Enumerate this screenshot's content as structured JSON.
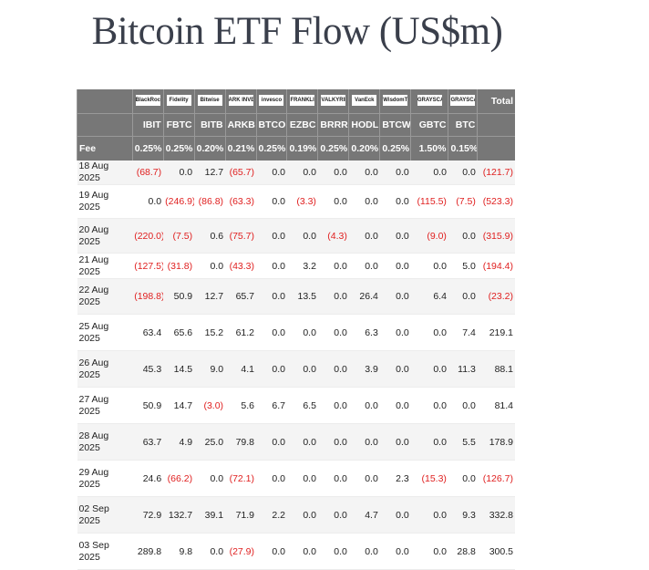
{
  "title": "Bitcoin ETF Flow (US$m)",
  "issuers": [
    "BlackRock",
    "Fidelity",
    "Bitwise",
    "ARK INVEST",
    "invesco",
    "FRANKLIN TEMPLETON",
    "VALKYRIE",
    "VanEck",
    "WisdomTree",
    "GRAYSCALE",
    "GRAYSCALE"
  ],
  "columns": [
    "IBIT",
    "FBTC",
    "BITB",
    "ARKB",
    "BTCO",
    "EZBC",
    "BRRR",
    "HODL",
    "BTCW",
    "GBTC",
    "BTC"
  ],
  "total_label": "Total",
  "fee_label": "Fee",
  "fees": [
    "0.25%",
    "0.25%",
    "0.20%",
    "0.21%",
    "0.25%",
    "0.19%",
    "0.25%",
    "0.20%",
    "0.25%",
    "1.50%",
    "0.15%"
  ],
  "rows": [
    {
      "date": "18 Aug 2025",
      "values": [
        "(68.7)",
        "0.0",
        "12.7",
        "(65.7)",
        "0.0",
        "0.0",
        "0.0",
        "0.0",
        "0.0",
        "0.0",
        "0.0"
      ],
      "total": "(121.7)"
    },
    {
      "date": "19 Aug 2025",
      "values": [
        "0.0",
        "(246.9)",
        "(86.8)",
        "(63.3)",
        "0.0",
        "(3.3)",
        "0.0",
        "0.0",
        "0.0",
        "(115.5)",
        "(7.5)"
      ],
      "total": "(523.3)"
    },
    {
      "date": "20 Aug 2025",
      "values": [
        "(220.0)",
        "(7.5)",
        "0.6",
        "(75.7)",
        "0.0",
        "0.0",
        "(4.3)",
        "0.0",
        "0.0",
        "(9.0)",
        "0.0"
      ],
      "total": "(315.9)"
    },
    {
      "date": "21 Aug 2025",
      "values": [
        "(127.5)",
        "(31.8)",
        "0.0",
        "(43.3)",
        "0.0",
        "3.2",
        "0.0",
        "0.0",
        "0.0",
        "0.0",
        "5.0"
      ],
      "total": "(194.4)"
    },
    {
      "date": "22 Aug 2025",
      "values": [
        "(198.8)",
        "50.9",
        "12.7",
        "65.7",
        "0.0",
        "13.5",
        "0.0",
        "26.4",
        "0.0",
        "6.4",
        "0.0"
      ],
      "total": "(23.2)"
    },
    {
      "date": "25 Aug 2025",
      "values": [
        "63.4",
        "65.6",
        "15.2",
        "61.2",
        "0.0",
        "0.0",
        "0.0",
        "6.3",
        "0.0",
        "0.0",
        "7.4"
      ],
      "total": "219.1"
    },
    {
      "date": "26 Aug 2025",
      "values": [
        "45.3",
        "14.5",
        "9.0",
        "4.1",
        "0.0",
        "0.0",
        "0.0",
        "3.9",
        "0.0",
        "0.0",
        "11.3"
      ],
      "total": "88.1"
    },
    {
      "date": "27 Aug 2025",
      "values": [
        "50.9",
        "14.7",
        "(3.0)",
        "5.6",
        "6.7",
        "6.5",
        "0.0",
        "0.0",
        "0.0",
        "0.0",
        "0.0"
      ],
      "total": "81.4"
    },
    {
      "date": "28 Aug 2025",
      "values": [
        "63.7",
        "4.9",
        "25.0",
        "79.8",
        "0.0",
        "0.0",
        "0.0",
        "0.0",
        "0.0",
        "0.0",
        "5.5"
      ],
      "total": "178.9"
    },
    {
      "date": "29 Aug 2025",
      "values": [
        "24.6",
        "(66.2)",
        "0.0",
        "(72.1)",
        "0.0",
        "0.0",
        "0.0",
        "0.0",
        "2.3",
        "(15.3)",
        "0.0"
      ],
      "total": "(126.7)"
    },
    {
      "date": "02 Sep 2025",
      "values": [
        "72.9",
        "132.7",
        "39.1",
        "71.9",
        "2.2",
        "0.0",
        "0.0",
        "4.7",
        "0.0",
        "0.0",
        "9.3"
      ],
      "total": "332.8"
    },
    {
      "date": "03 Sep 2025",
      "values": [
        "289.8",
        "9.8",
        "0.0",
        "(27.9)",
        "0.0",
        "0.0",
        "0.0",
        "0.0",
        "0.0",
        "0.0",
        "28.8"
      ],
      "total": "300.5"
    }
  ]
}
